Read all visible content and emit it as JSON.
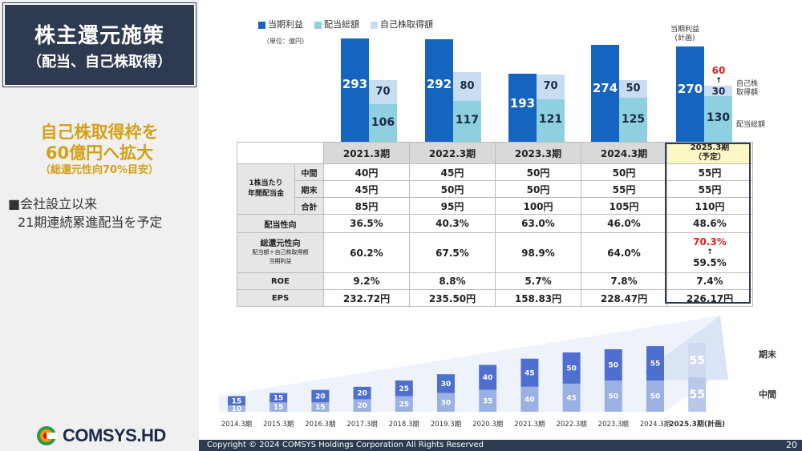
{
  "sidebar": {
    "title_main": "株主還元施策",
    "title_sub": "（配当、自己株取得）",
    "highlight_1": "自己株取得枠を",
    "highlight_2": "60億円へ拡大",
    "highlight_3": "（総還元性向70%目安）",
    "bullet_1": "■会社設立以来",
    "bullet_2": "21期連続累進配当を予定",
    "logo_text": "COMSYS.HD"
  },
  "footer": {
    "copyright": "Copyright © 2024 COMSYS Holdings Corporation All Rights Reserved",
    "page": "20"
  },
  "top_chart": {
    "legend": [
      "当期利益",
      "配当総額",
      "自己株取得額"
    ],
    "colors": {
      "profit": "#1565c0",
      "dividend": "#8fd0e0",
      "buyback": "#c9ddf2"
    },
    "unit": "（単位：億円）",
    "plan_note_1": "当期利益",
    "plan_note_2": "(計画)",
    "side_label_buyback_1": "自己株",
    "side_label_buyback_2": "取得額",
    "side_label_dividend": "配当総額",
    "plan_buyback_new": "60",
    "arrow": "↑",
    "plan_buyback_old": "30"
  },
  "chart_data": [
    {
      "type": "bar",
      "categories": [
        "2021.3期",
        "2022.3期",
        "2023.3期",
        "2024.3期",
        "2025.3期"
      ],
      "series": [
        {
          "name": "当期利益",
          "values": [
            293,
            292,
            193,
            274,
            270
          ]
        },
        {
          "name": "配当総額",
          "values": [
            106,
            117,
            121,
            125,
            130
          ]
        },
        {
          "name": "自己株取得額",
          "values": [
            70,
            80,
            70,
            50,
            30
          ]
        }
      ]
    },
    {
      "type": "bar",
      "categories": [
        "2014.3期",
        "2015.3期",
        "2016.3期",
        "2017.3期",
        "2018.3期",
        "2019.3期",
        "2020.3期",
        "2021.3期",
        "2022.3期",
        "2023.3期",
        "2024.3期",
        "2025.3期(計画)"
      ],
      "series": [
        {
          "name": "中間",
          "values": [
            10,
            15,
            15,
            20,
            25,
            30,
            35,
            40,
            45,
            50,
            50,
            55
          ]
        },
        {
          "name": "期末",
          "values": [
            15,
            15,
            20,
            20,
            25,
            30,
            40,
            45,
            50,
            50,
            55,
            55
          ]
        }
      ],
      "legend": [
        "期末",
        "中間"
      ]
    }
  ],
  "table": {
    "headers": [
      "2021.3期",
      "2022.3期",
      "2023.3期",
      "2024.3期"
    ],
    "plan_header_1": "2025.3期",
    "plan_header_2": "（予定）",
    "group_label_1": "1株当たり",
    "group_label_2": "年間配当金",
    "rows": [
      {
        "label": "中間",
        "values": [
          "40円",
          "45円",
          "50円",
          "50円",
          "55円"
        ]
      },
      {
        "label": "期末",
        "values": [
          "45円",
          "50円",
          "50円",
          "55円",
          "55円"
        ]
      },
      {
        "label": "合計",
        "values": [
          "85円",
          "95円",
          "100円",
          "105円",
          "110円"
        ]
      }
    ],
    "payout_label": "配当性向",
    "payout": [
      "36.5%",
      "40.3%",
      "63.0%",
      "46.0%",
      "48.6%"
    ],
    "total_label": "総還元性向",
    "total_sub_1": "配当額＋自己株取得額",
    "total_sub_2": "当期利益",
    "total": [
      "60.2%",
      "67.5%",
      "98.9%",
      "64.0%"
    ],
    "total_plan_new": "70.3%",
    "total_plan_arrow": "↑",
    "total_plan_old": "59.5%",
    "roe_label": "ROE",
    "roe": [
      "9.2%",
      "8.8%",
      "5.7%",
      "7.8%",
      "7.4%"
    ],
    "eps_label": "EPS",
    "eps": [
      "232.72円",
      "235.50円",
      "158.83円",
      "228.47円",
      "226.17円"
    ]
  }
}
